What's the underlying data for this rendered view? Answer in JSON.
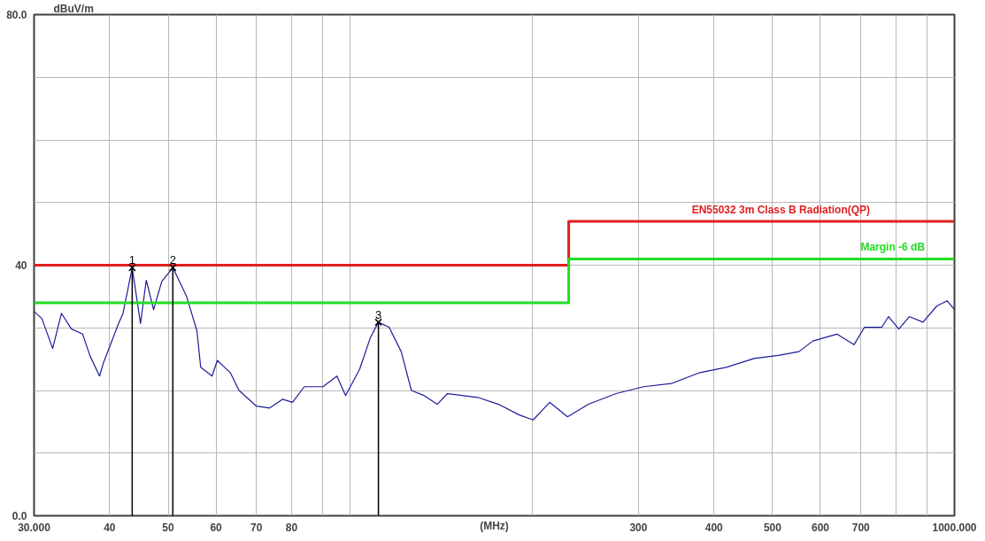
{
  "chart_data": {
    "type": "line",
    "xlabel": "(MHz)",
    "ylabel": "dBuV/m",
    "log": "x",
    "grid": true,
    "xlim": [
      30,
      1000
    ],
    "ylim": [
      0,
      80
    ],
    "xticks": [
      {
        "value": 30,
        "label": "30.000"
      },
      40,
      50,
      60,
      70,
      80,
      {
        "value": 90,
        "label": null
      },
      {
        "value": 100,
        "label": null
      },
      {
        "value": 200,
        "label": null
      },
      300,
      400,
      500,
      600,
      700,
      {
        "value": 800,
        "label": null
      },
      {
        "value": 900,
        "label": null
      },
      {
        "value": 1000,
        "label": "1000.000"
      }
    ],
    "yticks": [
      {
        "value": 0,
        "label": "0.0"
      },
      {
        "value": 10,
        "label": null
      },
      {
        "value": 20,
        "label": null
      },
      {
        "value": 30,
        "label": null
      },
      40,
      {
        "value": 50,
        "label": null
      },
      {
        "value": 60,
        "label": null
      },
      {
        "value": 70,
        "label": null
      },
      {
        "value": 80,
        "label": "80.0"
      }
    ],
    "series": [
      {
        "color": "#1c1c9a",
        "x": [
          30,
          30.9,
          32.2,
          33.3,
          34.6,
          36.1,
          37.1,
          38.5,
          39.1,
          41.4,
          42.1,
          43.6,
          45.0,
          46.0,
          47.3,
          48.8,
          50.9,
          53.6,
          55.8,
          56.6,
          59.1,
          60.3,
          63.4,
          65.5,
          70.0,
          73.6,
          77.3,
          80.3,
          84.0,
          90.2,
          95.1,
          98.3,
          103.7,
          108,
          111.4,
          116,
          121.5,
          126.3,
          132.5,
          139.4,
          144.9,
          162.6,
          176,
          190.5,
          200.8,
          214,
          229,
          248,
          275.5,
          306,
          340,
          377.5,
          419,
          466,
          511,
          553,
          583,
          639,
          682,
          710,
          758,
          778,
          809,
          842,
          887,
          935,
          973,
          1000
        ],
        "values": [
          32.6,
          31.5,
          26.7,
          32.3,
          29.8,
          29.0,
          25.6,
          22.3,
          24.5,
          30.7,
          32.3,
          39.6,
          30.7,
          37.6,
          32.9,
          37.4,
          39.6,
          35.1,
          29.5,
          23.7,
          22.3,
          24.8,
          22.8,
          20.0,
          17.5,
          17.2,
          18.6,
          18.1,
          20.6,
          20.6,
          22.3,
          19.2,
          23.4,
          28.4,
          30.9,
          30.1,
          26.2,
          20.0,
          19.2,
          17.8,
          19.5,
          18.9,
          17.8,
          16.1,
          15.3,
          18.1,
          15.8,
          17.8,
          19.5,
          20.6,
          21.1,
          22.8,
          23.7,
          25.1,
          25.6,
          26.2,
          27.9,
          29.0,
          27.3,
          30.1,
          30.1,
          31.8,
          29.8,
          31.8,
          30.9,
          33.5,
          34.3,
          32.9
        ]
      },
      {
        "type": "step",
        "name": "EN55032 3m Class B Radiation(QP)",
        "color": "#e02020",
        "x": [
          30,
          230,
          1000
        ],
        "values": [
          40,
          47,
          47
        ]
      },
      {
        "type": "step",
        "name": "Margin -6 dB",
        "color": "#22dd22",
        "x": [
          30,
          230,
          1000
        ],
        "values": [
          34,
          41,
          41
        ]
      },
      {
        "type": "lollipop",
        "color": "#000000",
        "marker": "cross",
        "x": [
          43.6,
          50.9,
          111.4
        ],
        "values": [
          39.6,
          39.6,
          30.9
        ]
      }
    ],
    "annotations": [
      {
        "text": "1",
        "x": 43.6,
        "y": 39.6
      },
      {
        "text": "2",
        "x": 50.9,
        "y": 39.6
      },
      {
        "text": "3",
        "x": 111.4,
        "y": 30.9
      }
    ]
  }
}
